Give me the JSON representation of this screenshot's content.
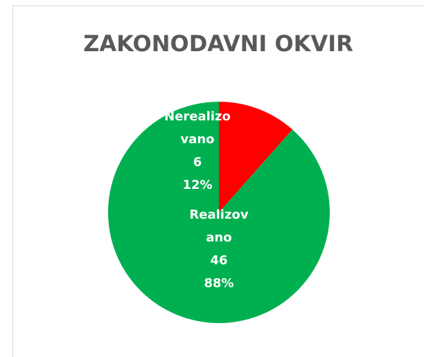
{
  "chart_data": {
    "type": "pie",
    "title": "ZAKONODAVNI OKVIR",
    "categories": [
      "Nerealizovano",
      "Realizovano"
    ],
    "values": [
      6,
      46
    ],
    "percentages": [
      12,
      88
    ],
    "percentage_labels": [
      "12%",
      "88%"
    ],
    "colors": [
      "#ff0000",
      "#00b050"
    ]
  }
}
